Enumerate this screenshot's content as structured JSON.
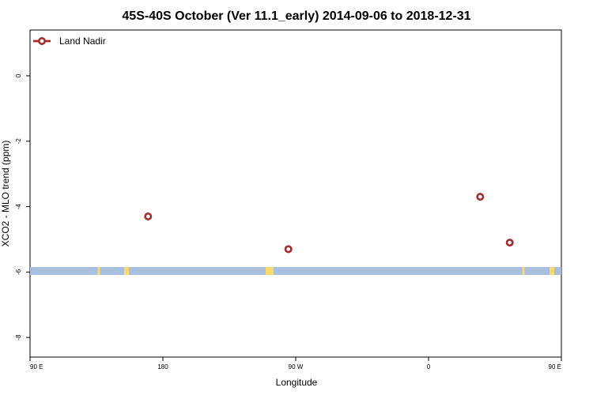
{
  "chart_data": {
    "type": "line",
    "title": "45S-40S October (Ver 11.1_early)   2014-09-06 to 2018-12-31",
    "xlabel": "Longitude",
    "ylabel": "XCO2 - MLO trend (ppm)",
    "xlim": [
      90,
      450
    ],
    "ylim": [
      -8.6,
      1.4
    ],
    "xticks": [
      {
        "value": 90,
        "label": "90 E"
      },
      {
        "value": 180,
        "label": "180"
      },
      {
        "value": 270,
        "label": "90 W"
      },
      {
        "value": 360,
        "label": "0"
      },
      {
        "value": 450,
        "label": "90 E"
      }
    ],
    "yticks": [
      {
        "value": 0,
        "label": "0"
      },
      {
        "value": -2,
        "label": "-2"
      },
      {
        "value": -4,
        "label": "-4"
      },
      {
        "value": -6,
        "label": "-6"
      },
      {
        "value": -8,
        "label": "-8"
      }
    ],
    "grid": false,
    "legend_position": "top-left",
    "series": [
      {
        "name": "Land Nadir",
        "color": "#a52a2a",
        "segments": [
          [
            [
              170,
              -4.3
            ]
          ],
          [
            [
              265,
              -5.3
            ]
          ],
          [
            [
              415,
              -5.1
            ]
          ],
          [
            [
              395,
              -3.7
            ]
          ]
        ]
      }
    ]
  }
}
